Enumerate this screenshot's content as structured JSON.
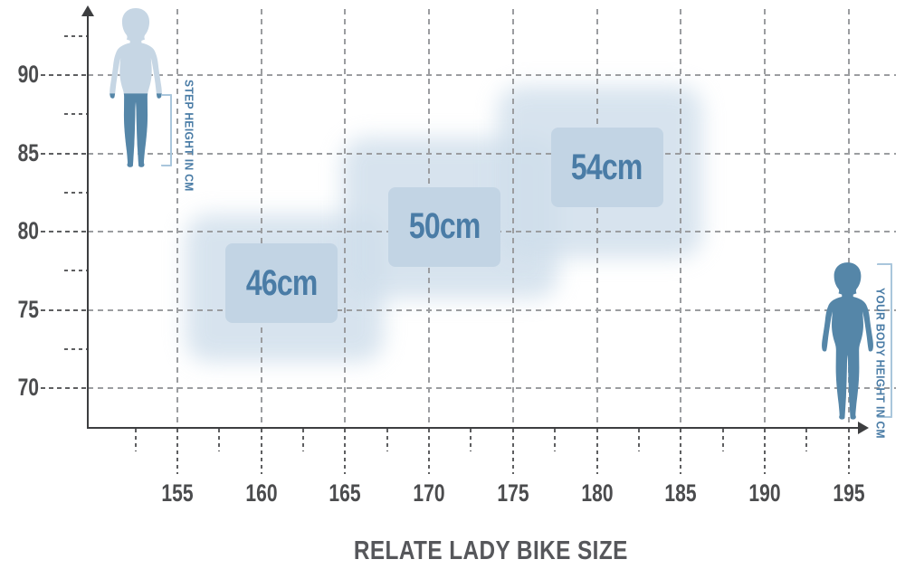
{
  "title": "RELATE LADY BIKE SIZE",
  "annotations": {
    "step_height_label": "STEP HEIGHT IN CM",
    "body_height_label": "YOUR BODY HEIGHT IN CM"
  },
  "chart_data": {
    "type": "area",
    "title": "RELATE LADY BIKE SIZE",
    "xlabel": "YOUR BODY HEIGHT IN CM",
    "ylabel": "STEP HEIGHT IN CM",
    "x_ticks": [
      155,
      160,
      165,
      170,
      175,
      180,
      185,
      190,
      195
    ],
    "y_ticks": [
      70,
      75,
      80,
      85,
      90
    ],
    "x_minor_offset": -2.5,
    "y_minor_offset": 2.5,
    "xlim": [
      152,
      197
    ],
    "ylim": [
      67.5,
      93
    ],
    "grid": true,
    "legend_position": "none",
    "series": [
      {
        "name": "46cm",
        "body_height_range": [
          155.5,
          167.3
        ],
        "step_height_range": [
          71.7,
          81.1
        ],
        "label_center": {
          "body_height": 161.2,
          "step_height": 76.7
        }
      },
      {
        "name": "50cm",
        "body_height_range": [
          164.8,
          177.7
        ],
        "step_height_range": [
          75.7,
          86.0
        ],
        "label_center": {
          "body_height": 170.9,
          "step_height": 80.3
        }
      },
      {
        "name": "54cm",
        "body_height_range": [
          174.1,
          186.3
        ],
        "step_height_range": [
          78.3,
          89.3
        ],
        "label_center": {
          "body_height": 180.6,
          "step_height": 84.1
        }
      }
    ]
  },
  "colors": {
    "accent": "#4a7ca6",
    "figure_light": "#c6d6e4",
    "figure_dark": "#5586a8",
    "region": "#cfdeeb",
    "box_fill": "#c2d4e4",
    "grid": "#9b9da0",
    "tick": "#5e5f61",
    "axis": "#3d3e40",
    "tick_text": "#4b4c4e",
    "title_text": "#56575b",
    "bracket": "#a9c6dc"
  }
}
